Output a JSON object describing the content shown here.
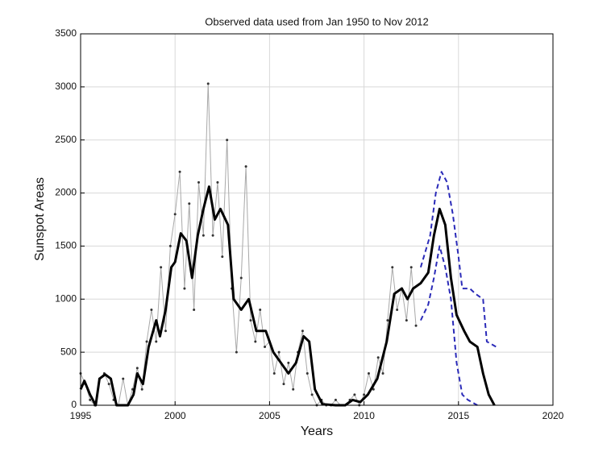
{
  "chart_data": {
    "type": "line",
    "title": "Observed data used from Jan 1950 to Nov 2012",
    "x_label": "Years",
    "y_label": "Sunspot Areas",
    "xlim": [
      1995,
      2020
    ],
    "xticks": [
      1995,
      2000,
      2005,
      2010,
      2015,
      2020
    ],
    "ylim": [
      0,
      3500
    ],
    "yticks": [
      0,
      500,
      1000,
      1500,
      2000,
      2500,
      3000,
      3500
    ],
    "grid": true,
    "series": [
      {
        "color": "#a8a8a8",
        "style": "solid",
        "markers": true,
        "width": 1,
        "x": [
          1995,
          1995.25,
          1995.5,
          1995.75,
          1996,
          1996.25,
          1996.5,
          1996.75,
          1997,
          1997.25,
          1997.5,
          1997.75,
          1998,
          1998.25,
          1998.5,
          1998.75,
          1999,
          1999.25,
          1999.5,
          1999.75,
          2000,
          2000.25,
          2000.5,
          2000.75,
          2001,
          2001.25,
          2001.5,
          2001.75,
          2002,
          2002.25,
          2002.5,
          2002.75,
          2003,
          2003.25,
          2003.5,
          2003.75,
          2004,
          2004.25,
          2004.5,
          2004.75,
          2005,
          2005.25,
          2005.5,
          2005.75,
          2006,
          2006.25,
          2006.5,
          2006.75,
          2007,
          2007.25,
          2007.5,
          2007.75,
          2008,
          2008.25,
          2008.5,
          2008.75,
          2009,
          2009.25,
          2009.5,
          2009.75,
          2010,
          2010.25,
          2010.5,
          2010.75,
          2011,
          2011.25,
          2011.5,
          2011.75,
          2012,
          2012.25,
          2012.5,
          2012.75
        ],
        "values": [
          300,
          200,
          50,
          0,
          250,
          300,
          200,
          50,
          0,
          250,
          0,
          150,
          350,
          150,
          600,
          900,
          600,
          1300,
          700,
          1500,
          1800,
          2200,
          1100,
          1900,
          900,
          2100,
          1600,
          3030,
          1600,
          2100,
          1400,
          2500,
          1100,
          500,
          1200,
          2250,
          800,
          600,
          900,
          550,
          600,
          300,
          500,
          200,
          400,
          150,
          500,
          700,
          300,
          100,
          0,
          50,
          0,
          0,
          50,
          0,
          0,
          50,
          100,
          0,
          100,
          300,
          150,
          450,
          300,
          800,
          1300,
          900,
          1100,
          800,
          1300,
          750
        ]
      },
      {
        "color": "#000000",
        "style": "solid",
        "markers": false,
        "width": 3,
        "x": [
          1995,
          1995.2,
          1995.5,
          1995.8,
          1996,
          1996.3,
          1996.6,
          1996.9,
          1997.5,
          1997.8,
          1998,
          1998.3,
          1998.6,
          1999,
          1999.2,
          1999.5,
          1999.8,
          2000,
          2000.3,
          2000.6,
          2000.9,
          2001.2,
          2001.5,
          2001.8,
          2002.1,
          2002.4,
          2002.8,
          2003.1,
          2003.5,
          2003.9,
          2004.3,
          2004.8,
          2005.2,
          2005.6,
          2006,
          2006.4,
          2006.8,
          2007.1,
          2007.4,
          2007.8,
          2008.5,
          2009,
          2009.4,
          2009.8,
          2010.2,
          2010.7,
          2011.2,
          2011.6,
          2012,
          2012.3,
          2012.6,
          2013,
          2013.4,
          2013.7,
          2014,
          2014.3,
          2014.6,
          2014.9,
          2015.3,
          2015.6,
          2016,
          2016.3,
          2016.6,
          2016.9
        ],
        "values": [
          150,
          230,
          100,
          0,
          250,
          290,
          250,
          0,
          0,
          100,
          300,
          200,
          550,
          800,
          650,
          900,
          1300,
          1350,
          1620,
          1550,
          1200,
          1600,
          1850,
          2060,
          1750,
          1850,
          1700,
          1000,
          900,
          1000,
          700,
          700,
          500,
          400,
          300,
          400,
          650,
          600,
          150,
          10,
          0,
          0,
          50,
          30,
          100,
          250,
          600,
          1050,
          1100,
          1000,
          1100,
          1150,
          1250,
          1600,
          1850,
          1700,
          1200,
          850,
          700,
          600,
          550,
          300,
          100,
          0
        ]
      },
      {
        "color": "#2a2ab8",
        "style": "dashed",
        "markers": false,
        "width": 2,
        "x": [
          2013,
          2013.5,
          2013.8,
          2014.1,
          2014.4,
          2014.7,
          2015,
          2015.2,
          2015.6,
          2015.9,
          2016.3,
          2016.5,
          2017
        ],
        "values": [
          1300,
          1600,
          2000,
          2200,
          2100,
          1800,
          1400,
          1100,
          1100,
          1050,
          1000,
          600,
          550
        ]
      },
      {
        "color": "#2a2ab8",
        "style": "dashed",
        "markers": false,
        "width": 2,
        "x": [
          2013,
          2013.4,
          2013.7,
          2014,
          2014.3,
          2014.6,
          2014.9,
          2015.2,
          2015.5,
          2016
        ],
        "values": [
          800,
          950,
          1200,
          1500,
          1300,
          1000,
          400,
          100,
          50,
          0
        ]
      }
    ]
  }
}
